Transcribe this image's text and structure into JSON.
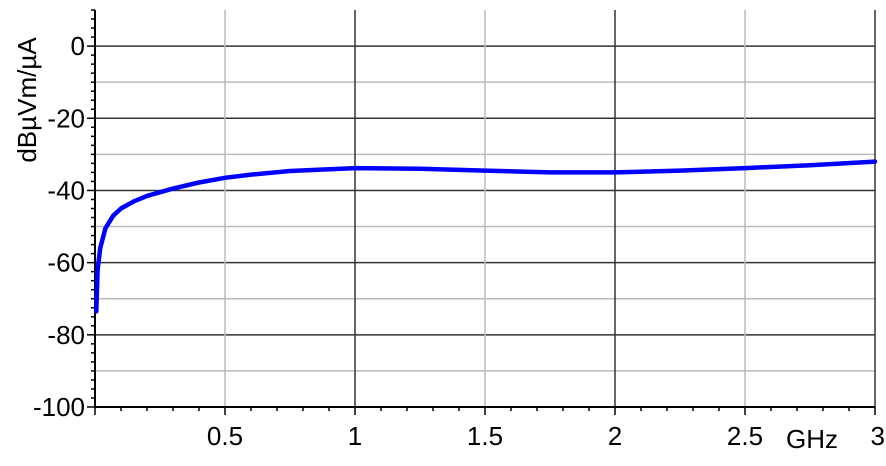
{
  "chart_data": {
    "type": "line",
    "title": "",
    "xlabel": "GHz",
    "ylabel": "dBµVm/µA",
    "xlim": [
      0,
      3
    ],
    "ylim": [
      -100,
      10
    ],
    "grid": true,
    "xticks": [
      0.5,
      1,
      1.5,
      2,
      2.5,
      3
    ],
    "xtick_labels": [
      "0.5",
      "1",
      "1.5",
      "2",
      "2.5",
      "3"
    ],
    "yticks": [
      0,
      -20,
      -40,
      -60,
      -80,
      -100
    ],
    "ytick_labels": [
      "0",
      "-20",
      "-40",
      "-60",
      "-80",
      "-100"
    ],
    "series": [
      {
        "color": "#0000ff",
        "x": [
          0.005,
          0.01,
          0.02,
          0.04,
          0.07,
          0.1,
          0.15,
          0.2,
          0.3,
          0.4,
          0.5,
          0.6,
          0.75,
          1.0,
          1.25,
          1.5,
          1.75,
          2.0,
          2.25,
          2.5,
          2.75,
          3.0
        ],
        "y": [
          -73.5,
          -62,
          -56,
          -50.5,
          -47,
          -45,
          -43,
          -41.5,
          -39.5,
          -37.8,
          -36.5,
          -35.6,
          -34.6,
          -33.8,
          -34,
          -34.5,
          -35,
          -35,
          -34.5,
          -33.8,
          -33,
          -32
        ]
      }
    ]
  }
}
